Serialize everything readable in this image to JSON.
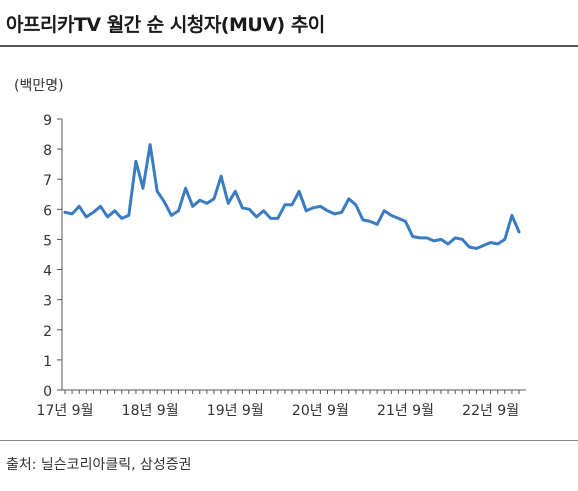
{
  "title": "아프리카TV 월간 순 시청자(MUV) 추이",
  "source": "출처: 닐슨코리아클릭, 삼성증권",
  "chart_data": {
    "type": "line",
    "ylabel": "(백만명)",
    "xlabel": "",
    "ylim": [
      0,
      9
    ],
    "yticks": [
      "0",
      "1",
      "2",
      "3",
      "4",
      "5",
      "6",
      "7",
      "8",
      "9"
    ],
    "xticks": [
      "17년 9월",
      "18년 9월",
      "19년 9월",
      "20년 9월",
      "21년 9월",
      "22년 9월"
    ],
    "xtick_index": [
      0,
      12,
      24,
      36,
      48,
      60
    ],
    "grid": false,
    "legend": "none",
    "color": "#3a7cc2",
    "series": [
      {
        "values": [
          5.9,
          5.85,
          6.1,
          5.75,
          5.9,
          6.1,
          5.75,
          5.95,
          5.7,
          5.8,
          7.6,
          6.7,
          8.15,
          6.6,
          6.25,
          5.8,
          5.95,
          6.7,
          6.1,
          6.3,
          6.2,
          6.35,
          7.1,
          6.2,
          6.6,
          6.05,
          6.0,
          5.75,
          5.95,
          5.7,
          5.7,
          6.15,
          6.15,
          6.6,
          5.95,
          6.05,
          6.1,
          5.95,
          5.85,
          5.9,
          6.35,
          6.15,
          5.65,
          5.6,
          5.5,
          5.95,
          5.8,
          5.7,
          5.6,
          5.1,
          5.05,
          5.05,
          4.95,
          5.0,
          4.85,
          5.05,
          5.0,
          4.75,
          4.7,
          4.8,
          4.9,
          4.85,
          5.0,
          5.8,
          5.25
        ]
      }
    ]
  }
}
